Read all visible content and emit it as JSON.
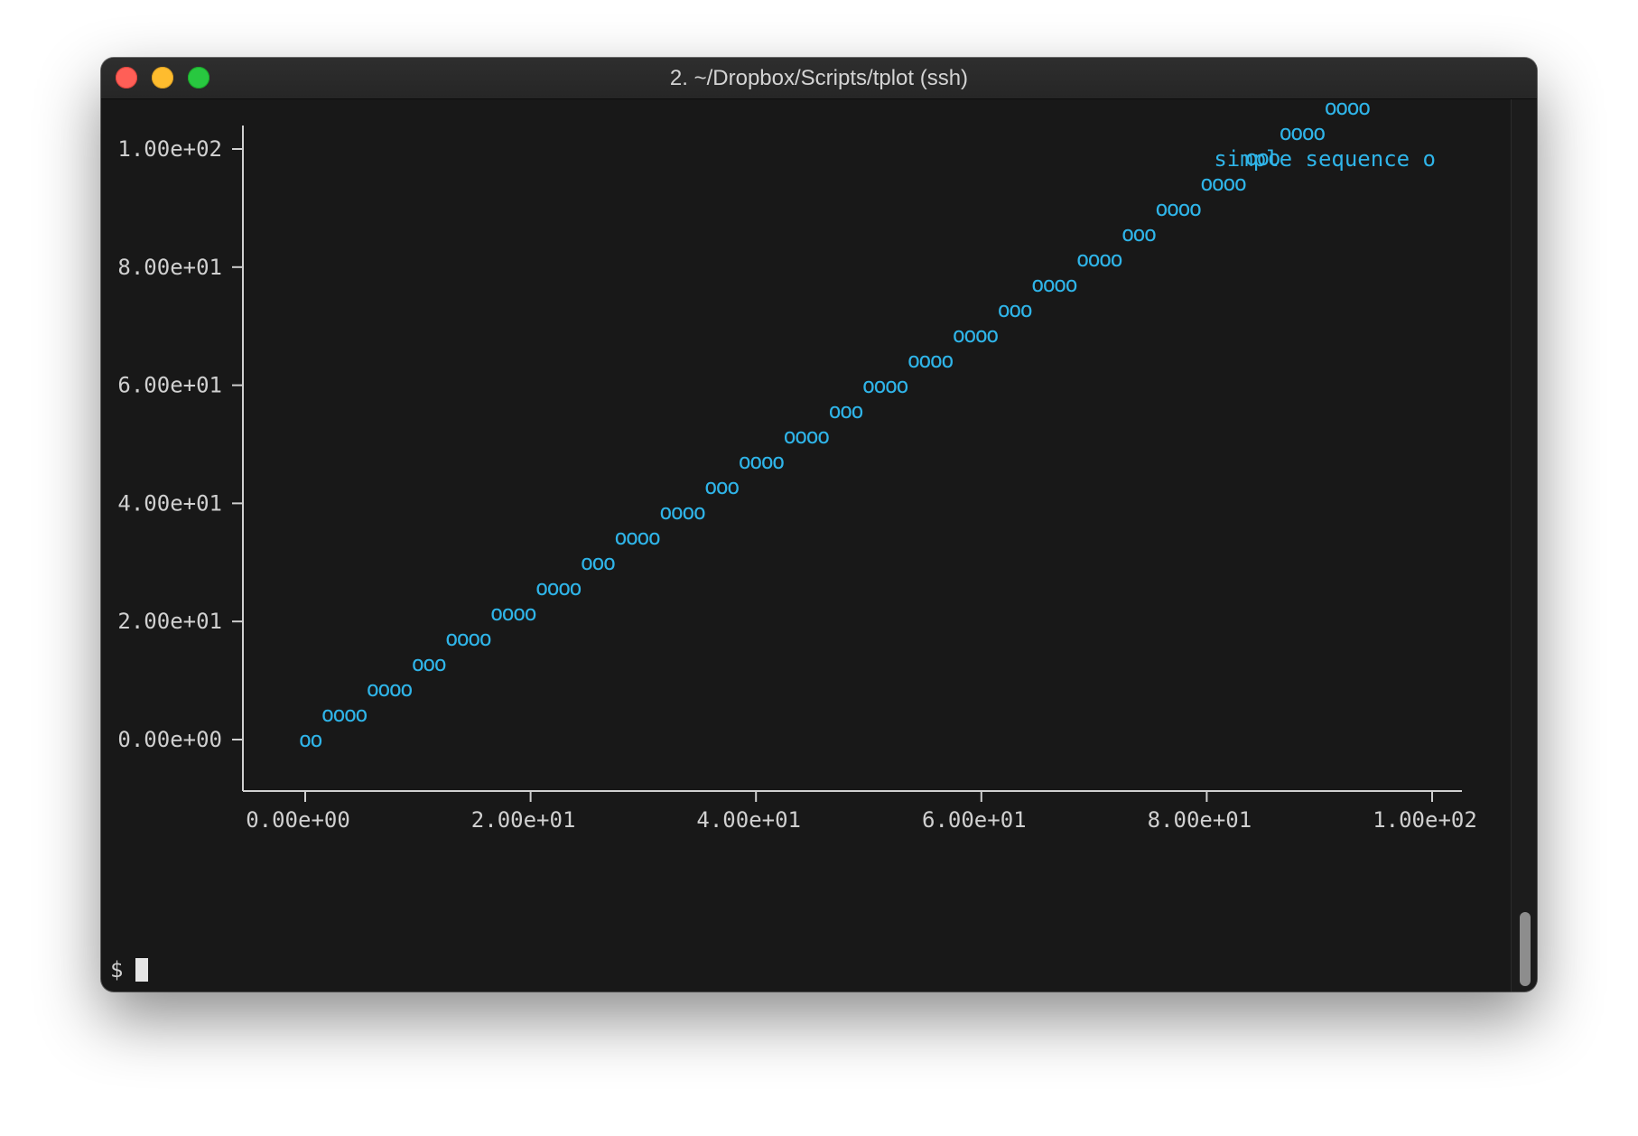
{
  "window": {
    "title": "2. ~/Dropbox/Scripts/tplot (ssh)"
  },
  "terminal": {
    "prompt": "$",
    "colors": {
      "background": "#181818",
      "text": "#d0d0d0",
      "series": "#2fb4e8"
    }
  },
  "chart_data": {
    "type": "scatter",
    "title": "",
    "xlabel": "",
    "ylabel": "",
    "xlim": [
      0,
      100
    ],
    "ylim": [
      0,
      100
    ],
    "grid": false,
    "legend_position": "top-right",
    "x_ticks": [
      {
        "value": 0,
        "label": "0.00e+00"
      },
      {
        "value": 20,
        "label": "2.00e+01"
      },
      {
        "value": 40,
        "label": "4.00e+01"
      },
      {
        "value": 60,
        "label": "6.00e+01"
      },
      {
        "value": 80,
        "label": "8.00e+01"
      },
      {
        "value": 100,
        "label": "1.00e+02"
      }
    ],
    "y_ticks": [
      {
        "value": 0,
        "label": "0.00e+00"
      },
      {
        "value": 20,
        "label": "2.00e+01"
      },
      {
        "value": 40,
        "label": "4.00e+01"
      },
      {
        "value": 60,
        "label": "6.00e+01"
      },
      {
        "value": 80,
        "label": "8.00e+01"
      },
      {
        "value": 100,
        "label": "1.00e+02"
      }
    ],
    "series": [
      {
        "name": "simple sequence",
        "marker": "o",
        "x": [
          0,
          1,
          2,
          3,
          4,
          5,
          6,
          7,
          8,
          9,
          10,
          11,
          12,
          13,
          14,
          15,
          16,
          17,
          18,
          19,
          20,
          21,
          22,
          23,
          24,
          25,
          26,
          27,
          28,
          29,
          30,
          31,
          32,
          33,
          34,
          35,
          36,
          37,
          38,
          39,
          40,
          41,
          42,
          43,
          44,
          45,
          46,
          47,
          48,
          49,
          50,
          51,
          52,
          53,
          54,
          55,
          56,
          57,
          58,
          59,
          60,
          61,
          62,
          63,
          64,
          65,
          66,
          67,
          68,
          69,
          70,
          71,
          72,
          73,
          74,
          75,
          76,
          77,
          78,
          79,
          80,
          81,
          82,
          83,
          84,
          85,
          86,
          87,
          88,
          89,
          90,
          91,
          92,
          93,
          94,
          95,
          96,
          97,
          98,
          99
        ],
        "y": [
          0,
          1,
          2,
          3,
          4,
          5,
          6,
          7,
          8,
          9,
          10,
          11,
          12,
          13,
          14,
          15,
          16,
          17,
          18,
          19,
          20,
          21,
          22,
          23,
          24,
          25,
          26,
          27,
          28,
          29,
          30,
          31,
          32,
          33,
          34,
          35,
          36,
          37,
          38,
          39,
          40,
          41,
          42,
          43,
          44,
          45,
          46,
          47,
          48,
          49,
          50,
          51,
          52,
          53,
          54,
          55,
          56,
          57,
          58,
          59,
          60,
          61,
          62,
          63,
          64,
          65,
          66,
          67,
          68,
          69,
          70,
          71,
          72,
          73,
          74,
          75,
          76,
          77,
          78,
          79,
          80,
          81,
          82,
          83,
          84,
          85,
          86,
          87,
          88,
          89,
          90,
          91,
          92,
          93,
          94,
          95,
          96,
          97,
          98,
          99
        ]
      }
    ]
  }
}
